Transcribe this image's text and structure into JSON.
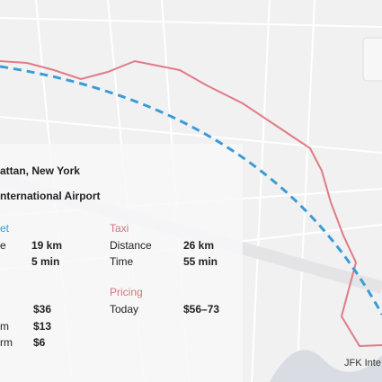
{
  "route": {
    "origin": "attan, New York",
    "destination": "nternational Airport",
    "left": {
      "header": "et",
      "rows": [
        {
          "label": "e",
          "value": "19 km"
        },
        {
          "label": null,
          "value": "5 min"
        }
      ],
      "prices": [
        {
          "label": null,
          "value": "$36"
        },
        {
          "label": "m",
          "value": "$13"
        },
        {
          "label": "rm",
          "value": "$6"
        }
      ]
    },
    "taxi": {
      "header": "Taxi",
      "rows": [
        {
          "label": "Distance",
          "value": "26 km"
        },
        {
          "label": "Time",
          "value": "55 min"
        }
      ]
    },
    "pricing": {
      "header": "Pricing",
      "rows": [
        {
          "label": "Today",
          "value": "$56–73"
        }
      ]
    },
    "map_label": "JFK Inte"
  }
}
